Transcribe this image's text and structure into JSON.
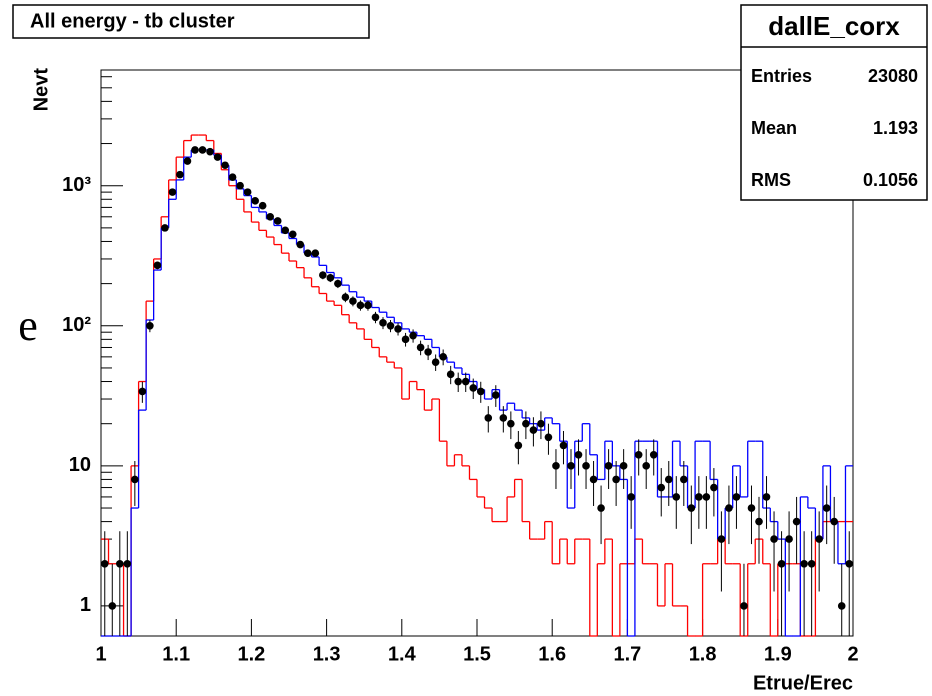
{
  "chart_data": {
    "type": "histogram",
    "title": "All energy - tb cluster",
    "stray_text": "e",
    "x_label": "Etrue/Erec",
    "y_label": "Nevt",
    "log_y": true,
    "xlim": [
      1,
      2
    ],
    "ylim": [
      0.61,
      6700
    ],
    "xticks": [
      1,
      1.1,
      1.2,
      1.3,
      1.4,
      1.5,
      1.6,
      1.7,
      1.8,
      1.9,
      2
    ],
    "yticks": [
      1,
      10,
      {
        "value": 100,
        "label": "10²"
      },
      {
        "value": 1000,
        "label": "10³"
      }
    ],
    "stats": {
      "title": "dallE_corx",
      "rows": [
        {
          "label": "Entries",
          "value": 23080
        },
        {
          "label": "Mean",
          "value": 1.193
        },
        {
          "label": "RMS",
          "value": 0.1056
        }
      ]
    },
    "bins": [
      1,
      1.01,
      1.02,
      1.03,
      1.04,
      1.05,
      1.06,
      1.07,
      1.08,
      1.09,
      1.1,
      1.11,
      1.12,
      1.13,
      1.14,
      1.15,
      1.16,
      1.17,
      1.18,
      1.19,
      1.2,
      1.21,
      1.22,
      1.23,
      1.24,
      1.25,
      1.26,
      1.27,
      1.28,
      1.29,
      1.3,
      1.31,
      1.32,
      1.33,
      1.34,
      1.35,
      1.36,
      1.37,
      1.38,
      1.39,
      1.4,
      1.41,
      1.42,
      1.43,
      1.44,
      1.45,
      1.46,
      1.47,
      1.48,
      1.49,
      1.5,
      1.51,
      1.52,
      1.53,
      1.54,
      1.55,
      1.56,
      1.57,
      1.58,
      1.59,
      1.6,
      1.61,
      1.62,
      1.63,
      1.64,
      1.65,
      1.66,
      1.67,
      1.68,
      1.69,
      1.7,
      1.71,
      1.72,
      1.73,
      1.74,
      1.75,
      1.76,
      1.77,
      1.78,
      1.79,
      1.8,
      1.81,
      1.82,
      1.83,
      1.84,
      1.85,
      1.86,
      1.87,
      1.88,
      1.89,
      1.9,
      1.91,
      1.92,
      1.93,
      1.94,
      1.95,
      1.96,
      1.97,
      1.98,
      1.99,
      2
    ],
    "series": [
      {
        "color": "#ff0000",
        "style": "step",
        "values": [
          3,
          2,
          2,
          0,
          10,
          40,
          150,
          300,
          600,
          1100,
          1600,
          2100,
          2300,
          2300,
          2100,
          1700,
          1300,
          1000,
          800,
          650,
          550,
          480,
          430,
          380,
          330,
          290,
          260,
          220,
          190,
          170,
          150,
          140,
          120,
          105,
          95,
          80,
          70,
          60,
          55,
          50,
          30,
          40,
          35,
          25,
          30,
          15,
          10,
          12,
          10,
          8,
          6,
          5,
          4,
          4,
          6,
          8,
          4,
          3,
          3,
          4,
          2,
          3,
          2,
          3,
          3,
          0,
          2,
          3,
          0,
          2,
          2,
          3,
          2,
          2,
          1,
          2,
          1,
          1,
          0,
          0,
          2,
          2,
          3,
          2,
          2,
          0,
          2,
          3,
          2,
          0,
          2,
          2,
          2,
          0,
          0,
          3,
          4,
          4,
          4,
          4
        ]
      },
      {
        "color": "#0000ff",
        "style": "step",
        "values": [
          0,
          0,
          0,
          0,
          5,
          25,
          110,
          250,
          500,
          800,
          1100,
          1600,
          1800,
          1800,
          1800,
          1650,
          1400,
          1100,
          950,
          850,
          700,
          650,
          580,
          520,
          460,
          420,
          380,
          330,
          310,
          270,
          240,
          220,
          195,
          175,
          160,
          150,
          135,
          125,
          115,
          105,
          95,
          90,
          85,
          80,
          70,
          60,
          55,
          50,
          45,
          40,
          35,
          30,
          35,
          25,
          28,
          25,
          22,
          20,
          18,
          22,
          20,
          15,
          5,
          15,
          20,
          12,
          8,
          15,
          10,
          8,
          0,
          15,
          15,
          15,
          6,
          6,
          15,
          10,
          5,
          15,
          15,
          8,
          3,
          5,
          10,
          6,
          15,
          15,
          5,
          4,
          3,
          0,
          0,
          6,
          5,
          3,
          10,
          4,
          2,
          10
        ]
      },
      {
        "color": "#000000",
        "style": "points",
        "values": [
          2,
          1,
          2,
          2,
          8,
          34,
          100,
          270,
          500,
          900,
          1200,
          1500,
          1800,
          1800,
          1750,
          1600,
          1400,
          1150,
          1000,
          900,
          780,
          720,
          600,
          560,
          480,
          450,
          380,
          330,
          330,
          230,
          220,
          200,
          160,
          150,
          140,
          140,
          115,
          105,
          100,
          95,
          80,
          85,
          70,
          65,
          55,
          60,
          45,
          40,
          40,
          36,
          34,
          22,
          32,
          22,
          20,
          14,
          20,
          18,
          20,
          16,
          10,
          14,
          10,
          12,
          10,
          8,
          5,
          10,
          8,
          10,
          6,
          12,
          10,
          12,
          7,
          8,
          6,
          8,
          5,
          6,
          6,
          7,
          3,
          5,
          6,
          1,
          5,
          4,
          6,
          3,
          2,
          3,
          4,
          2,
          2,
          3,
          5,
          4,
          1,
          2
        ]
      }
    ]
  }
}
